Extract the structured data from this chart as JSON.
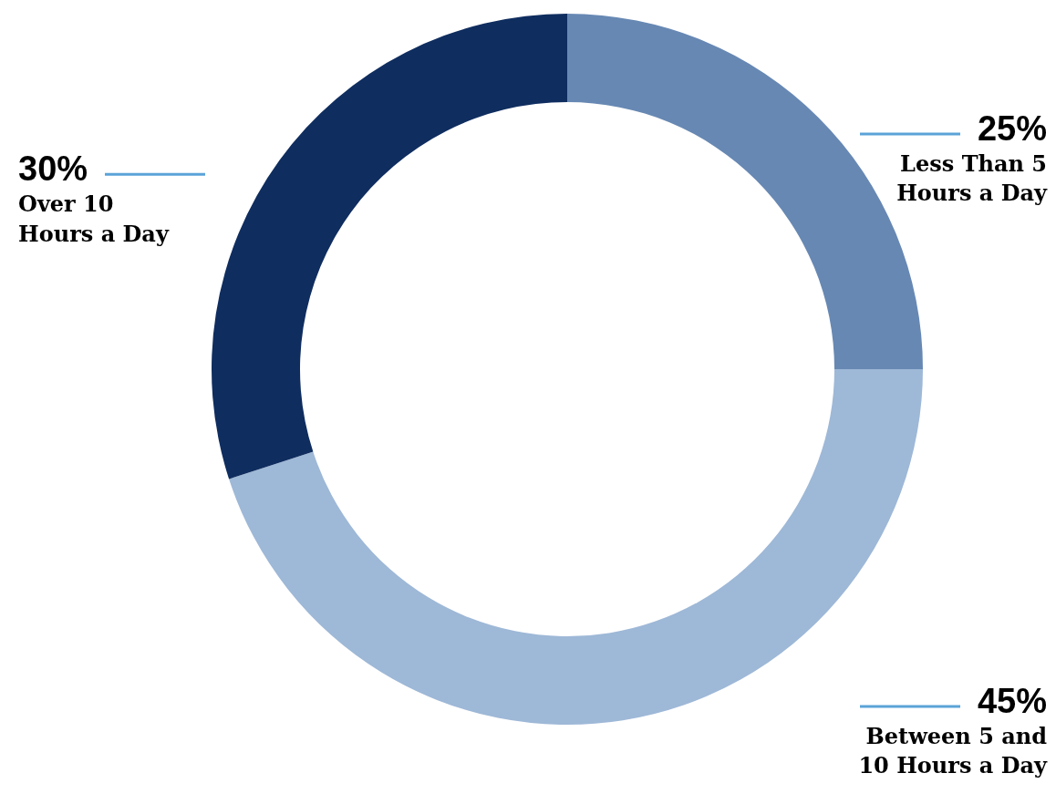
{
  "chart_data": {
    "type": "donut",
    "categories": [
      "Less Than 5\nHours a Day",
      "Between 5 and\n10 Hours a Day",
      "Over 10\nHours a Day"
    ],
    "values": [
      25,
      45,
      30
    ],
    "colors": [
      "#6788b3",
      "#9eb8d7",
      "#0f2d5f"
    ],
    "value_labels": [
      "25%",
      "45%",
      "30%"
    ]
  }
}
